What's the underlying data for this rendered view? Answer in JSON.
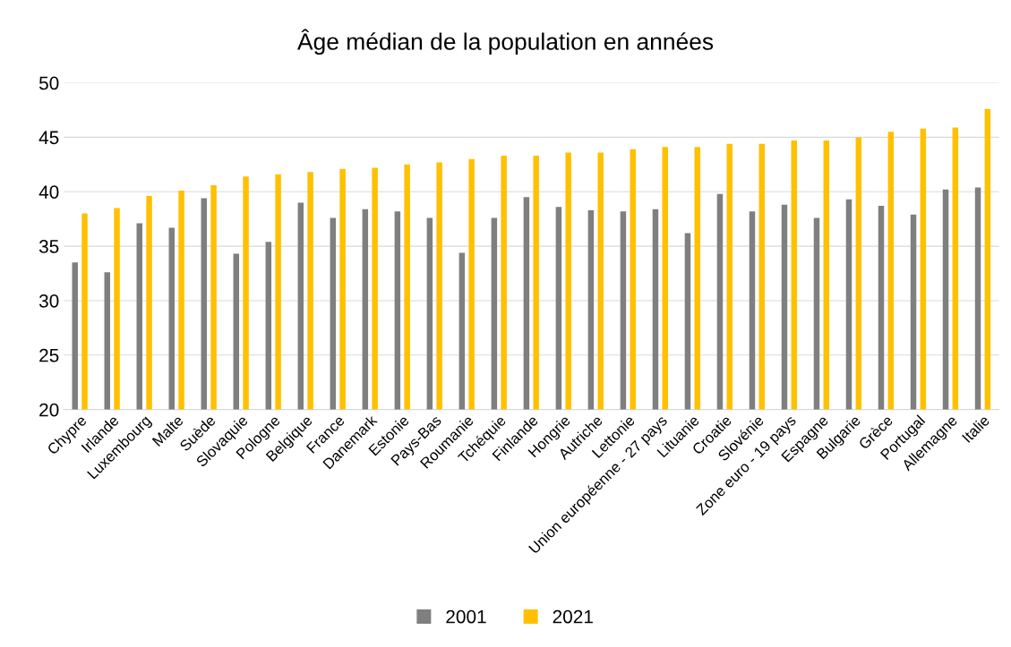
{
  "chart_data": {
    "type": "bar",
    "title": "Âge médian de la population en années",
    "categories": [
      "Chypre",
      "Irlande",
      "Luxembourg",
      "Malte",
      "Suède",
      "Slovaquie",
      "Pologne",
      "Belgique",
      "France",
      "Danemark",
      "Estonie",
      "Pays-Bas",
      "Roumanie",
      "Tchéquie",
      "Finlande",
      "Hongrie",
      "Autriche",
      "Lettonie",
      "Union européenne - 27 pays",
      "Lituanie",
      "Croatie",
      "Slovénie",
      "Zone euro - 19 pays",
      "Espagne",
      "Bulgarie",
      "Grèce",
      "Portugal",
      "Allemagne",
      "Italie"
    ],
    "series": [
      {
        "name": "2001",
        "color": "#7f7f7f",
        "values": [
          33.5,
          32.6,
          37.1,
          36.7,
          39.4,
          34.3,
          35.4,
          39.0,
          37.6,
          38.4,
          38.2,
          37.6,
          34.4,
          37.6,
          39.5,
          38.6,
          38.3,
          38.2,
          38.4,
          36.2,
          39.8,
          38.2,
          38.8,
          37.6,
          39.3,
          38.7,
          37.9,
          40.2,
          40.4
        ]
      },
      {
        "name": "2021",
        "color": "#ffc000",
        "values": [
          38.0,
          38.5,
          39.6,
          40.1,
          40.6,
          41.4,
          41.6,
          41.8,
          42.1,
          42.2,
          42.5,
          42.7,
          43.0,
          43.3,
          43.3,
          43.6,
          43.6,
          43.9,
          44.1,
          44.1,
          44.4,
          44.4,
          44.7,
          44.7,
          45.0,
          45.5,
          45.8,
          45.9,
          47.6
        ]
      }
    ],
    "ylim": [
      20,
      50
    ],
    "yticks": [
      20,
      25,
      30,
      35,
      40,
      45,
      50
    ],
    "grid": "y",
    "legend": "bottom"
  }
}
